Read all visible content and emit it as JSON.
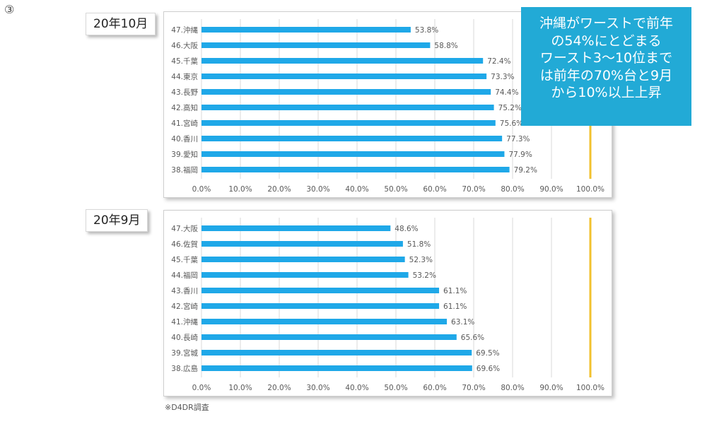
{
  "page": {
    "slide_number": "③",
    "source_note": "※D4DR調査",
    "callout_lines": [
      "沖縄がワーストで前年",
      "の54%にとどまる",
      "ワースト3〜10位まで",
      "は前年の70%台と9月",
      "から10%以上上昇"
    ]
  },
  "colors": {
    "bar": "#1fa8e8",
    "reference_line": "#f2c12e",
    "grid": "#d9d9d9",
    "callout_bg": "#22aad6"
  },
  "chart_data": [
    {
      "type": "bar",
      "orientation": "horizontal",
      "title": "20年10月",
      "categories": [
        "47.沖縄",
        "46.大阪",
        "45.千葉",
        "44.東京",
        "43.長野",
        "42.高知",
        "41.宮崎",
        "40.香川",
        "39.愛知",
        "38.福岡"
      ],
      "values": [
        53.8,
        58.8,
        72.4,
        73.3,
        74.4,
        75.2,
        75.6,
        77.3,
        77.9,
        79.2
      ],
      "value_labels": [
        "53.8%",
        "58.8%",
        "72.4%",
        "73.3%",
        "74.4%",
        "75.2%",
        "75.6%",
        "77.3%",
        "77.9%",
        "79.2%"
      ],
      "xlim": [
        0,
        100
      ],
      "xticks": [
        "0.0%",
        "10.0%",
        "20.0%",
        "30.0%",
        "40.0%",
        "50.0%",
        "60.0%",
        "70.0%",
        "80.0%",
        "90.0%",
        "100.0%"
      ],
      "reference_line": 100,
      "grid": true,
      "legend": "none"
    },
    {
      "type": "bar",
      "orientation": "horizontal",
      "title": "20年9月",
      "categories": [
        "47.大阪",
        "46.佐賀",
        "45.千葉",
        "44.福岡",
        "43.香川",
        "42.宮崎",
        "41.沖縄",
        "40.長崎",
        "39.宮城",
        "38.広島"
      ],
      "values": [
        48.6,
        51.8,
        52.3,
        53.2,
        61.1,
        61.1,
        63.1,
        65.6,
        69.5,
        69.6
      ],
      "value_labels": [
        "48.6%",
        "51.8%",
        "52.3%",
        "53.2%",
        "61.1%",
        "61.1%",
        "63.1%",
        "65.6%",
        "69.5%",
        "69.6%"
      ],
      "xlim": [
        0,
        100
      ],
      "xticks": [
        "0.0%",
        "10.0%",
        "20.0%",
        "30.0%",
        "40.0%",
        "50.0%",
        "60.0%",
        "70.0%",
        "80.0%",
        "90.0%",
        "100.0%"
      ],
      "reference_line": 100,
      "grid": true,
      "legend": "none"
    }
  ]
}
